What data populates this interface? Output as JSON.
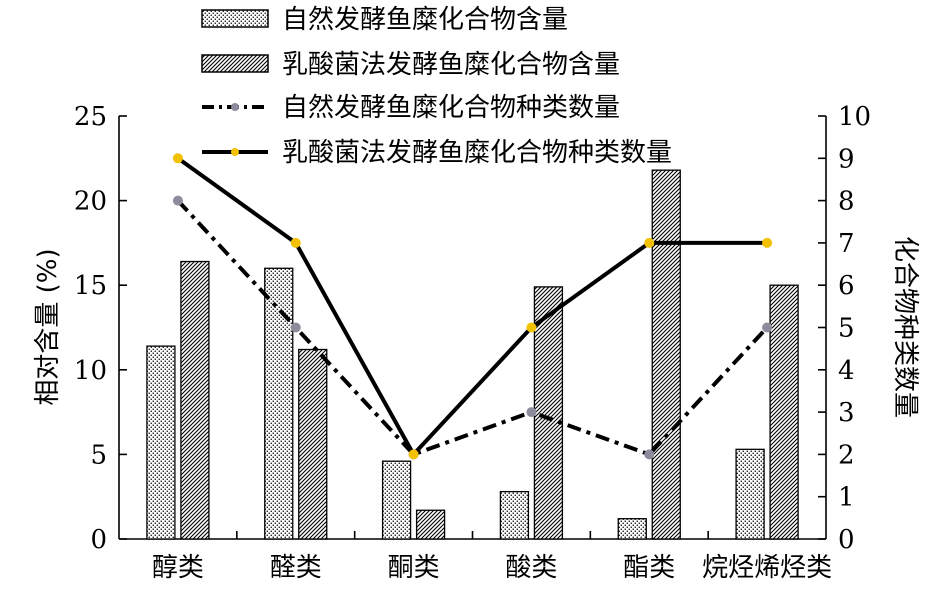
{
  "chart_data": {
    "type": "bar",
    "categories": [
      "醇类",
      "醛类",
      "酮类",
      "酸类",
      "酯类",
      "烷烃烯烃类"
    ],
    "ylabel_left": "相对含量 (%)",
    "ylabel_right": "化合物种类数量",
    "ylim_left": [
      0,
      25
    ],
    "ylim_right": [
      0,
      10
    ],
    "yticks_left": [
      0,
      5,
      10,
      15,
      20,
      25
    ],
    "yticks_right": [
      0,
      1,
      2,
      3,
      4,
      5,
      6,
      7,
      8,
      9,
      10
    ],
    "grid": false,
    "legend_position": "top",
    "bar_series": [
      {
        "name": "自然发酵鱼糜化合物含量",
        "values": [
          11.4,
          16.0,
          4.6,
          2.8,
          1.2,
          5.3
        ],
        "pattern": "dots"
      },
      {
        "name": "乳酸菌法发酵鱼糜化合物含量",
        "values": [
          16.4,
          11.2,
          1.7,
          14.9,
          21.8,
          15.0
        ],
        "pattern": "hatch"
      }
    ],
    "line_series": [
      {
        "name": "自然发酵鱼糜化合物种类数量",
        "values": [
          8,
          5,
          2,
          3,
          2,
          5
        ],
        "style": "dashed",
        "marker_color": "#8c8c9c"
      },
      {
        "name": "乳酸菌法发酵鱼糜化合物种类数量",
        "values": [
          9,
          7,
          2,
          5,
          7,
          7
        ],
        "style": "solid",
        "marker_color": "#f2c200"
      }
    ]
  }
}
